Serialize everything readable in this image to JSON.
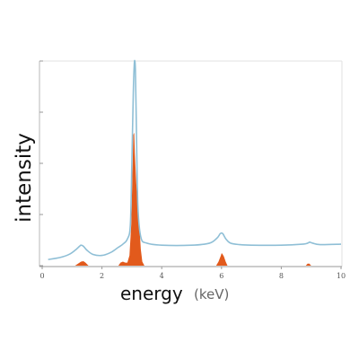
{
  "chart_data": {
    "type": "line",
    "xlabel": "energy",
    "xunit": "(keV)",
    "ylabel": "intensity",
    "xlim": [
      0,
      10
    ],
    "ylim": [
      0,
      100
    ],
    "x_ticks": [
      0,
      2,
      4,
      6,
      8,
      10
    ],
    "x_tick_labels": [
      "0",
      "2",
      "4",
      "6",
      "8",
      "10"
    ],
    "y_ticks": [
      0,
      25,
      50,
      75,
      100
    ],
    "y_tick_labels": [],
    "grid": false,
    "legend": "none",
    "series": [
      {
        "kind": "line",
        "color": "#8fbfd6",
        "x": [
          0.2,
          0.6,
          0.9,
          1.1,
          1.25,
          1.3,
          1.38,
          1.5,
          1.7,
          2.0,
          2.3,
          2.55,
          2.7,
          2.85,
          2.95,
          3.0,
          3.05,
          3.08,
          3.1,
          3.12,
          3.15,
          3.2,
          3.3,
          3.5,
          4.0,
          5.0,
          5.6,
          5.85,
          5.95,
          6.0,
          6.05,
          6.15,
          6.3,
          6.6,
          7.0,
          8.0,
          8.7,
          8.88,
          8.95,
          9.05,
          9.3,
          10.0
        ],
        "y": [
          3,
          4,
          5.5,
          7.5,
          9.5,
          10,
          9.5,
          7.5,
          5.5,
          5,
          6.5,
          9,
          10.5,
          13,
          20,
          50,
          85,
          98,
          100,
          95,
          70,
          30,
          14,
          11,
          10,
          10,
          11,
          13.5,
          15.5,
          16,
          15.5,
          13,
          11,
          10.3,
          10,
          10,
          10.5,
          11,
          11.5,
          11,
          10.3,
          10.5
        ]
      },
      {
        "kind": "area",
        "color": "#e25a1c",
        "x": [
          1.1,
          1.2,
          1.3,
          1.38,
          1.45,
          1.55,
          2.55,
          2.62,
          2.7,
          2.78,
          2.85,
          2.92,
          2.98,
          3.02,
          3.05,
          3.08,
          3.1,
          3.15,
          3.2,
          3.25,
          3.3,
          3.35,
          3.42,
          5.82,
          5.9,
          5.98,
          6.0,
          6.02,
          6.08,
          6.14,
          6.2,
          8.82,
          8.88,
          8.94,
          9.0
        ],
        "y": [
          0,
          1,
          2,
          2.2,
          1.5,
          0,
          0,
          1.5,
          2,
          1.5,
          1.5,
          5,
          20,
          45,
          64,
          65,
          55,
          40,
          30,
          20,
          8,
          2,
          0,
          0,
          2,
          5,
          6,
          6,
          4.5,
          2,
          0,
          0,
          1,
          1,
          0
        ]
      }
    ]
  }
}
